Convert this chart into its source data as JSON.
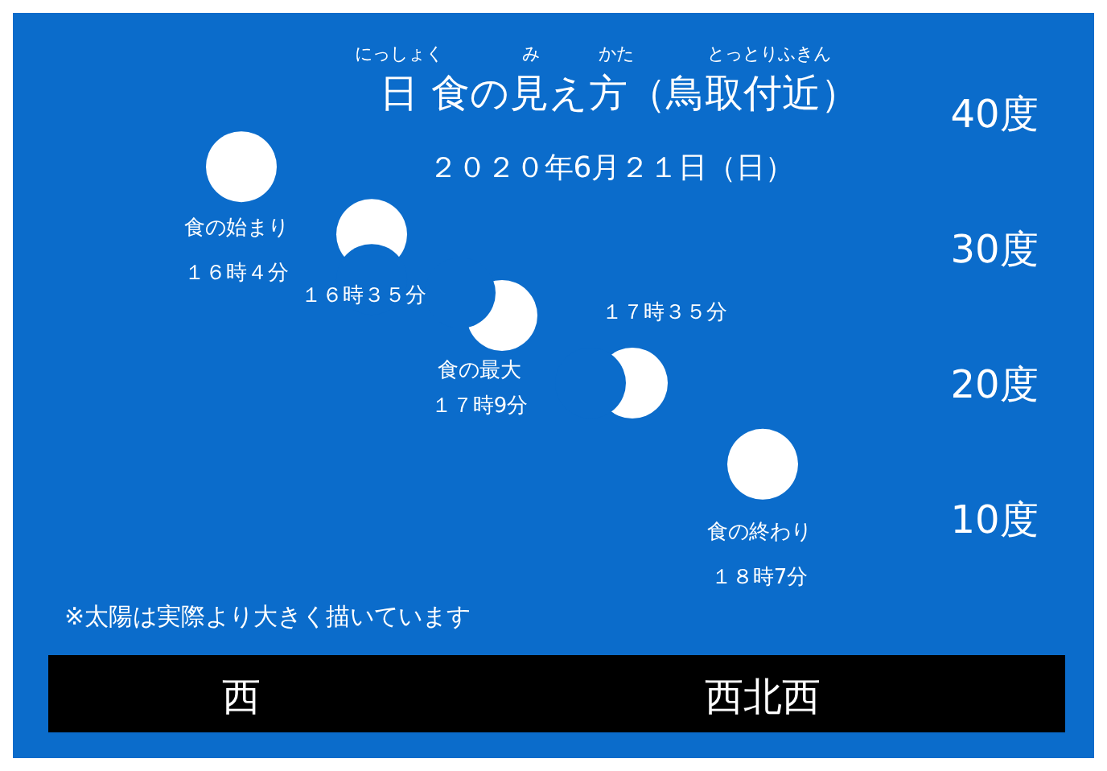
{
  "chart_data": {
    "type": "scatter",
    "title": "日 食の見え方（鳥取付近）",
    "subtitle": "２０２０年6月２１日（日）",
    "annotations": [
      "にっしょく",
      "み",
      "かた",
      "とっとりふきん",
      "※太陽は実際より大きく描いています",
      {
        "text": "食の始まり",
        "x": "西",
        "y": 36
      },
      "食の最大",
      {
        "text": "食の終わり",
        "x": "西北西",
        "y": 14
      }
    ],
    "categories": [
      "西",
      null,
      null,
      null,
      "西北西"
    ],
    "values": [
      36,
      31,
      25,
      20,
      14
    ],
    "color": "#ffffff",
    "value_labels": [
      "１６時４分",
      "１６時３５分",
      "１７時9分",
      "１７時３５分",
      "１８時7分"
    ],
    "ylim": [
      10,
      40
    ],
    "yticks": [
      {
        "value": 40,
        "label": "40度"
      },
      {
        "value": 30,
        "label": "30度"
      },
      {
        "value": 20,
        "label": "20度"
      },
      {
        "value": 10,
        "label": "10度"
      }
    ],
    "marker": "circle",
    "grid": false
  }
}
